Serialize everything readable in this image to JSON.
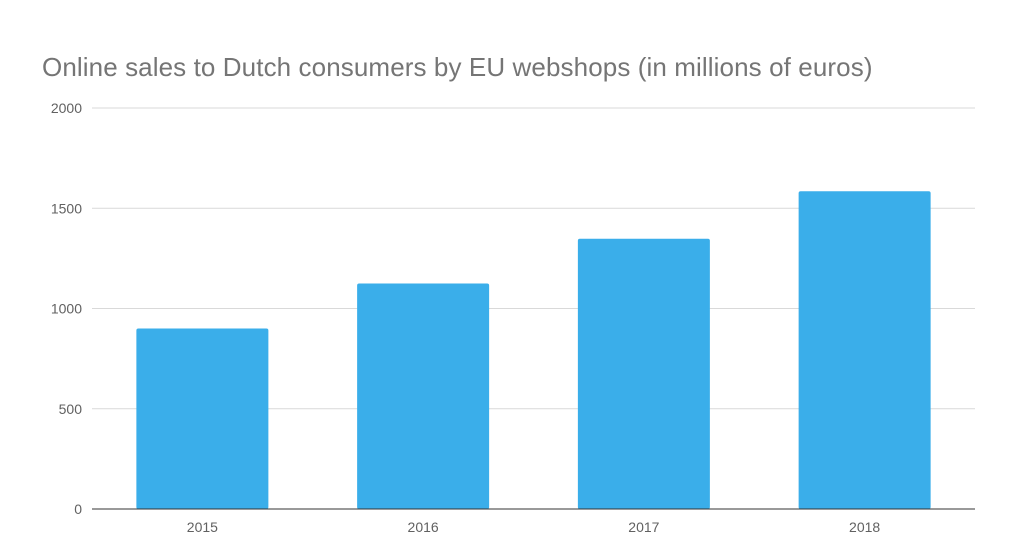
{
  "chart_data": {
    "type": "bar",
    "title": "Online sales to Dutch consumers by EU webshops (in millions of euros)",
    "xlabel": "",
    "ylabel": "",
    "categories": [
      "2015",
      "2016",
      "2017",
      "2018"
    ],
    "values": [
      900,
      1125,
      1348,
      1585
    ],
    "ylim": [
      0,
      2000
    ],
    "yticks": [
      "0",
      "500",
      "1000",
      "1500",
      "2000"
    ],
    "ytick_values": [
      0,
      500,
      1000,
      1500,
      2000
    ],
    "grid": true,
    "legend": "none",
    "colors": {
      "bar": "#3aaeea",
      "grid": "#d9d9d9",
      "axis": "#333333"
    }
  }
}
